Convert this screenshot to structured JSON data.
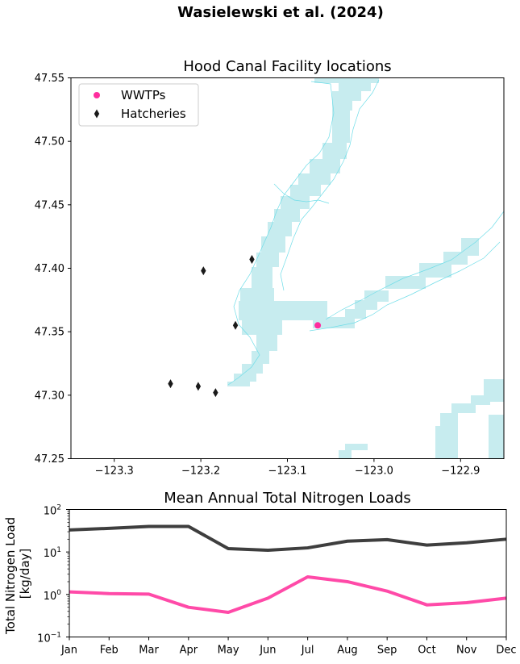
{
  "figure": {
    "suptitle": "Wasielewski et al. (2024)"
  },
  "colors": {
    "wwtp": "#ff2d9e",
    "hatchery": "#1a1a1a",
    "water": "#c7ecef",
    "water_edge": "#6fdde8",
    "hatchery_line": "#3e3e3e",
    "wwtp_line": "#ff4aa8"
  },
  "chart_data": [
    {
      "type": "scatter",
      "title": "Hood Canal Facility locations",
      "xlabel": "",
      "ylabel": "",
      "xlim": [
        -123.35,
        -122.85
      ],
      "ylim": [
        47.25,
        47.55
      ],
      "xticks": [
        -123.3,
        -123.2,
        -123.1,
        -123.0,
        -122.9
      ],
      "xtick_labels": [
        "−123.3",
        "−123.2",
        "−123.1",
        "−123.0",
        "−122.9"
      ],
      "yticks": [
        47.25,
        47.3,
        47.35,
        47.4,
        47.45,
        47.5,
        47.55
      ],
      "ytick_labels": [
        "47.25",
        "47.30",
        "47.35",
        "47.40",
        "47.45",
        "47.50",
        "47.55"
      ],
      "grid": false,
      "legend_position": "upper-left",
      "series": [
        {
          "name": "WWTPs",
          "marker": "circle",
          "points": [
            {
              "x": -123.065,
              "y": 47.355
            }
          ]
        },
        {
          "name": "Hatcheries",
          "marker": "thin-diamond",
          "points": [
            {
              "x": -123.197,
              "y": 47.398
            },
            {
              "x": -123.141,
              "y": 47.407
            },
            {
              "x": -123.16,
              "y": 47.355
            },
            {
              "x": -123.235,
              "y": 47.309
            },
            {
              "x": -123.203,
              "y": 47.307
            },
            {
              "x": -123.183,
              "y": 47.302
            }
          ]
        }
      ]
    },
    {
      "type": "line",
      "title": "Mean Annual Total Nitrogen Loads",
      "xlabel": "",
      "ylabel": "Total Nitrogen Load\n[kg/day]",
      "ylabel_lines": [
        "Total Nitrogen Load",
        "[kg/day]"
      ],
      "yscale": "log",
      "ylim": [
        0.1,
        100
      ],
      "ytick_labels": [
        {
          "base": "10",
          "exp": "−1"
        },
        {
          "base": "10",
          "exp": "0"
        },
        {
          "base": "10",
          "exp": "1"
        },
        {
          "base": "10",
          "exp": "2"
        }
      ],
      "categories": [
        "Jan",
        "Feb",
        "Mar",
        "Apr",
        "May",
        "Jun",
        "Jul",
        "Aug",
        "Sep",
        "Oct",
        "Nov",
        "Dec"
      ],
      "grid": false,
      "series": [
        {
          "values": [
            33,
            36,
            40,
            40,
            12,
            11,
            12.5,
            18,
            19.5,
            14.5,
            16.5,
            20
          ]
        },
        {
          "values": [
            1.15,
            1.05,
            1.02,
            0.5,
            0.38,
            0.82,
            2.6,
            2.0,
            1.2,
            0.57,
            0.64,
            0.82
          ]
        }
      ]
    }
  ]
}
